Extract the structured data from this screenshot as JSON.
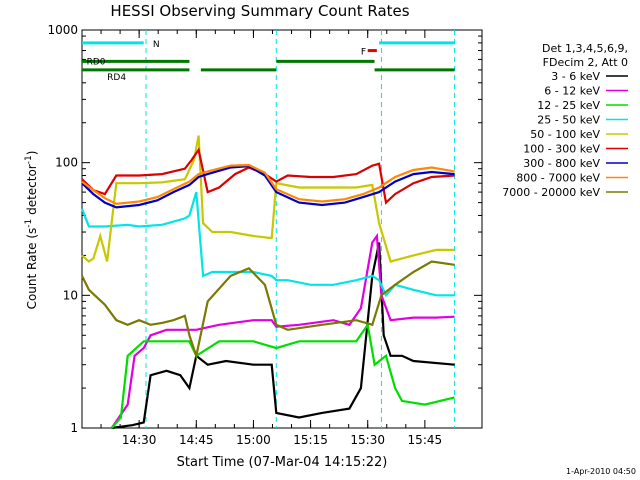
{
  "chart_data": {
    "type": "line",
    "title": "HESSI Observing Summary Count Rates",
    "xlabel": "Start Time (07-Mar-04 14:15:22)",
    "ylabel_main": "Count Rate (s",
    "ylabel_sup1": "-1",
    "ylabel_mid": " detector",
    "ylabel_sup2": "-1",
    "ylabel_end": ")",
    "yscale": "log",
    "ylim": [
      1,
      1000
    ],
    "xlim_minutes": [
      14.25,
      16.0
    ],
    "ytick_labels": [
      "1",
      "10",
      "100",
      "1000"
    ],
    "xtick_labels": [
      "14:30",
      "14:45",
      "15:00",
      "15:15",
      "15:30",
      "15:45"
    ],
    "legend_header": [
      "Det 1,3,4,5,6,9,",
      "FDecim 2, Att 0"
    ],
    "footer": "1-Apr-2010 04:50",
    "flags": {
      "labels": [
        "N",
        "RD0",
        "RD4",
        "F"
      ],
      "segments": [
        {
          "name": "N",
          "color": "#00e5e5",
          "level": 800,
          "x": [
            14.25,
            14.52
          ]
        },
        {
          "name": "N",
          "color": "#00e5e5",
          "level": 800,
          "x": [
            15.55,
            15.88
          ]
        },
        {
          "name": "RD0",
          "color": "#007700",
          "level": 580,
          "x": [
            14.25,
            14.53
          ]
        },
        {
          "name": "RD0",
          "color": "#007700",
          "level": 580,
          "x": [
            14.53,
            14.72
          ]
        },
        {
          "name": "RD4",
          "color": "#007700",
          "level": 500,
          "x": [
            14.25,
            14.72
          ]
        },
        {
          "name": "RD4",
          "color": "#007700",
          "level": 500,
          "x": [
            14.77,
            15.1
          ]
        },
        {
          "name": "RD0",
          "color": "#007700",
          "level": 580,
          "x": [
            15.1,
            15.53
          ]
        },
        {
          "name": "RD4",
          "color": "#007700",
          "level": 500,
          "x": [
            15.53,
            15.88
          ]
        },
        {
          "name": "F",
          "color": "#ee0000",
          "level": 700,
          "x": [
            15.5,
            15.54
          ]
        }
      ],
      "vlines_minutes": [
        14.53,
        15.1,
        15.56,
        15.88
      ]
    },
    "series": [
      {
        "name": "3 - 6 keV",
        "color": "#000000",
        "points": [
          [
            14.38,
            1
          ],
          [
            14.47,
            1.05
          ],
          [
            14.52,
            1.1
          ],
          [
            14.55,
            2.5
          ],
          [
            14.62,
            2.7
          ],
          [
            14.68,
            2.5
          ],
          [
            14.72,
            2.0
          ],
          [
            14.75,
            3.5
          ],
          [
            14.8,
            3.0
          ],
          [
            14.88,
            3.2
          ],
          [
            15.0,
            3.0
          ],
          [
            15.08,
            3.0
          ],
          [
            15.1,
            1.3
          ],
          [
            15.2,
            1.2
          ],
          [
            15.3,
            1.3
          ],
          [
            15.42,
            1.4
          ],
          [
            15.47,
            2.0
          ],
          [
            15.52,
            14
          ],
          [
            15.55,
            25
          ],
          [
            15.57,
            5
          ],
          [
            15.6,
            3.5
          ],
          [
            15.65,
            3.5
          ],
          [
            15.7,
            3.2
          ],
          [
            15.88,
            3.0
          ]
        ]
      },
      {
        "name": "6 - 12 keV",
        "color": "#e000e0",
        "points": [
          [
            14.38,
            1
          ],
          [
            14.45,
            1.5
          ],
          [
            14.48,
            3.5
          ],
          [
            14.52,
            4.0
          ],
          [
            14.55,
            5.0
          ],
          [
            14.62,
            5.5
          ],
          [
            14.7,
            5.5
          ],
          [
            14.75,
            5.5
          ],
          [
            14.85,
            6.0
          ],
          [
            15.0,
            6.5
          ],
          [
            15.08,
            6.5
          ],
          [
            15.1,
            5.8
          ],
          [
            15.2,
            6.0
          ],
          [
            15.35,
            6.5
          ],
          [
            15.42,
            6.0
          ],
          [
            15.47,
            8
          ],
          [
            15.52,
            25
          ],
          [
            15.54,
            28
          ],
          [
            15.56,
            10
          ],
          [
            15.6,
            6.5
          ],
          [
            15.7,
            6.8
          ],
          [
            15.8,
            6.8
          ],
          [
            15.88,
            6.9
          ]
        ]
      },
      {
        "name": "12 - 25 keV",
        "color": "#00dd00",
        "points": [
          [
            14.38,
            1
          ],
          [
            14.42,
            1.2
          ],
          [
            14.45,
            3.5
          ],
          [
            14.52,
            4.5
          ],
          [
            14.6,
            4.5
          ],
          [
            14.72,
            4.5
          ],
          [
            14.75,
            3.5
          ],
          [
            14.85,
            4.5
          ],
          [
            15.0,
            4.5
          ],
          [
            15.1,
            4.0
          ],
          [
            15.2,
            4.5
          ],
          [
            15.35,
            4.5
          ],
          [
            15.45,
            4.5
          ],
          [
            15.5,
            6
          ],
          [
            15.53,
            3
          ],
          [
            15.58,
            3.5
          ],
          [
            15.62,
            2.0
          ],
          [
            15.65,
            1.6
          ],
          [
            15.75,
            1.5
          ],
          [
            15.88,
            1.7
          ]
        ]
      },
      {
        "name": "25 - 50 keV",
        "color": "#00e5e5",
        "points": [
          [
            14.25,
            45
          ],
          [
            14.28,
            33
          ],
          [
            14.35,
            33
          ],
          [
            14.45,
            34
          ],
          [
            14.5,
            33
          ],
          [
            14.6,
            34
          ],
          [
            14.7,
            38
          ],
          [
            14.72,
            40
          ],
          [
            14.75,
            60
          ],
          [
            14.78,
            14
          ],
          [
            14.82,
            15
          ],
          [
            14.9,
            15
          ],
          [
            15.0,
            15
          ],
          [
            15.08,
            14
          ],
          [
            15.1,
            13
          ],
          [
            15.15,
            13
          ],
          [
            15.25,
            12
          ],
          [
            15.35,
            12
          ],
          [
            15.45,
            13
          ],
          [
            15.52,
            14
          ],
          [
            15.55,
            13
          ],
          [
            15.58,
            10
          ],
          [
            15.62,
            12
          ],
          [
            15.7,
            11
          ],
          [
            15.8,
            10
          ],
          [
            15.88,
            10
          ]
        ]
      },
      {
        "name": "50 - 100 keV",
        "color": "#c8c800",
        "points": [
          [
            14.25,
            20
          ],
          [
            14.28,
            18
          ],
          [
            14.3,
            19
          ],
          [
            14.33,
            28
          ],
          [
            14.36,
            18
          ],
          [
            14.4,
            70
          ],
          [
            14.5,
            70
          ],
          [
            14.6,
            71
          ],
          [
            14.7,
            75
          ],
          [
            14.74,
            105
          ],
          [
            14.76,
            160
          ],
          [
            14.78,
            35
          ],
          [
            14.82,
            30
          ],
          [
            14.9,
            30
          ],
          [
            15.0,
            28
          ],
          [
            15.08,
            27
          ],
          [
            15.1,
            70
          ],
          [
            15.2,
            65
          ],
          [
            15.3,
            65
          ],
          [
            15.45,
            65
          ],
          [
            15.52,
            68
          ],
          [
            15.55,
            35
          ],
          [
            15.6,
            18
          ],
          [
            15.7,
            20
          ],
          [
            15.8,
            22
          ],
          [
            15.88,
            22
          ]
        ]
      },
      {
        "name": "100 - 300 keV",
        "color": "#dd0000",
        "points": [
          [
            14.25,
            75
          ],
          [
            14.3,
            62
          ],
          [
            14.35,
            58
          ],
          [
            14.4,
            80
          ],
          [
            14.5,
            80
          ],
          [
            14.6,
            82
          ],
          [
            14.7,
            90
          ],
          [
            14.73,
            105
          ],
          [
            14.76,
            125
          ],
          [
            14.8,
            60
          ],
          [
            14.85,
            65
          ],
          [
            14.92,
            82
          ],
          [
            14.98,
            92
          ],
          [
            15.05,
            82
          ],
          [
            15.1,
            72
          ],
          [
            15.15,
            80
          ],
          [
            15.25,
            78
          ],
          [
            15.35,
            78
          ],
          [
            15.45,
            82
          ],
          [
            15.52,
            95
          ],
          [
            15.55,
            98
          ],
          [
            15.58,
            50
          ],
          [
            15.62,
            58
          ],
          [
            15.7,
            70
          ],
          [
            15.78,
            78
          ],
          [
            15.88,
            80
          ]
        ]
      },
      {
        "name": "300 - 800 keV",
        "color": "#0000cc",
        "points": [
          [
            14.25,
            70
          ],
          [
            14.3,
            58
          ],
          [
            14.35,
            50
          ],
          [
            14.4,
            46
          ],
          [
            14.5,
            48
          ],
          [
            14.58,
            52
          ],
          [
            14.65,
            60
          ],
          [
            14.72,
            68
          ],
          [
            14.76,
            78
          ],
          [
            14.8,
            82
          ],
          [
            14.9,
            92
          ],
          [
            14.98,
            94
          ],
          [
            15.05,
            80
          ],
          [
            15.1,
            60
          ],
          [
            15.2,
            50
          ],
          [
            15.3,
            48
          ],
          [
            15.4,
            50
          ],
          [
            15.48,
            55
          ],
          [
            15.55,
            60
          ],
          [
            15.62,
            72
          ],
          [
            15.7,
            82
          ],
          [
            15.78,
            85
          ],
          [
            15.88,
            82
          ]
        ]
      },
      {
        "name": "800 - 7000 keV",
        "color": "#ff8800",
        "points": [
          [
            14.25,
            72
          ],
          [
            14.3,
            62
          ],
          [
            14.35,
            54
          ],
          [
            14.4,
            49
          ],
          [
            14.5,
            51
          ],
          [
            14.58,
            55
          ],
          [
            14.65,
            63
          ],
          [
            14.72,
            72
          ],
          [
            14.76,
            82
          ],
          [
            14.8,
            86
          ],
          [
            14.9,
            95
          ],
          [
            14.98,
            96
          ],
          [
            15.05,
            84
          ],
          [
            15.1,
            63
          ],
          [
            15.2,
            53
          ],
          [
            15.3,
            51
          ],
          [
            15.4,
            53
          ],
          [
            15.48,
            58
          ],
          [
            15.55,
            65
          ],
          [
            15.62,
            78
          ],
          [
            15.7,
            88
          ],
          [
            15.78,
            92
          ],
          [
            15.88,
            86
          ]
        ]
      },
      {
        "name": "7000 - 20000 keV",
        "color": "#7a7a00",
        "points": [
          [
            14.25,
            14
          ],
          [
            14.28,
            11
          ],
          [
            14.32,
            9.5
          ],
          [
            14.35,
            8.5
          ],
          [
            14.4,
            6.5
          ],
          [
            14.45,
            6.0
          ],
          [
            14.5,
            6.5
          ],
          [
            14.55,
            6.0
          ],
          [
            14.6,
            6.2
          ],
          [
            14.65,
            6.5
          ],
          [
            14.7,
            7.0
          ],
          [
            14.72,
            5.0
          ],
          [
            14.75,
            3.5
          ],
          [
            14.8,
            9
          ],
          [
            14.9,
            14
          ],
          [
            14.98,
            16
          ],
          [
            15.05,
            12
          ],
          [
            15.1,
            6
          ],
          [
            15.15,
            5.5
          ],
          [
            15.3,
            6
          ],
          [
            15.45,
            6.5
          ],
          [
            15.52,
            6
          ],
          [
            15.56,
            10
          ],
          [
            15.62,
            12
          ],
          [
            15.7,
            15
          ],
          [
            15.78,
            18
          ],
          [
            15.88,
            17
          ]
        ]
      }
    ]
  }
}
